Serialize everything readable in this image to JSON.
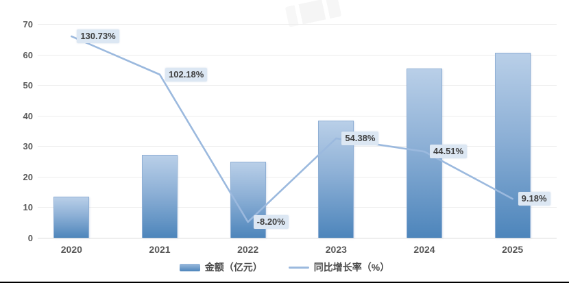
{
  "chart_data": {
    "type": "bar+line",
    "categories": [
      "2020",
      "2021",
      "2022",
      "2023",
      "2024",
      "2025"
    ],
    "series": [
      {
        "name": "金额（亿元）",
        "type": "bar",
        "axis": "left",
        "values": [
          13.4,
          27.1,
          24.9,
          38.4,
          55.5,
          60.6
        ]
      },
      {
        "name": "同比增长率（%）",
        "type": "line",
        "axis": "right",
        "values": [
          130.73,
          102.18,
          -8.2,
          54.38,
          44.51,
          9.18
        ],
        "point_labels": [
          "130.73%",
          "102.18%",
          "-8.20%",
          "54.38%",
          "44.51%",
          "9.18%"
        ]
      }
    ],
    "left_axis": {
      "ticks": [
        0,
        10,
        20,
        30,
        40,
        50,
        60,
        70
      ],
      "range": [
        0,
        70
      ]
    },
    "right_axis": {
      "range": [
        -20,
        140
      ],
      "visible": false
    },
    "grid": true,
    "legend_position": "bottom",
    "title": ""
  },
  "legend": {
    "items": [
      {
        "label": "金额（亿元）",
        "swatch": "bar"
      },
      {
        "label": "同比增长率（%）",
        "swatch": "line"
      }
    ]
  },
  "colors": {
    "bar_top": "#b9cfe8",
    "bar_bottom": "#4d85bb",
    "bar_border": "#8fafd4",
    "line": "#9bb9de",
    "point_label_bg": "#dce7f3",
    "point_label_text": "#3f3f3f",
    "grid": "#ececec",
    "axis_text": "#595959"
  }
}
